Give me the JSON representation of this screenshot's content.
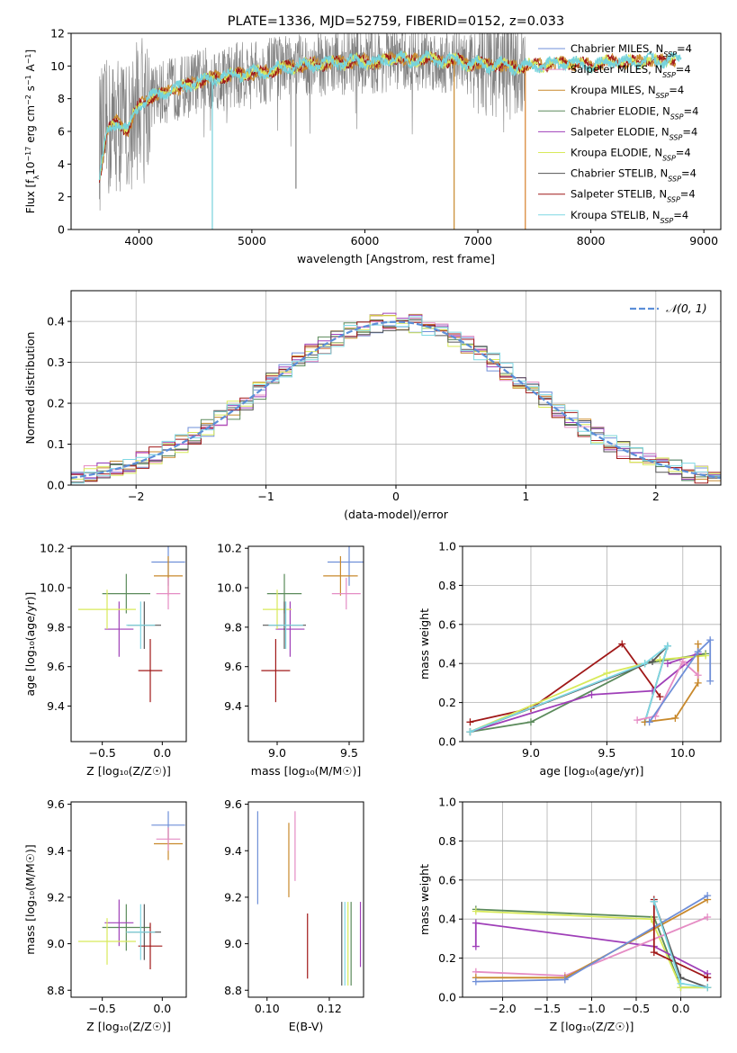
{
  "colors": {
    "chabrier_miles": "#6f8fd8",
    "salpeter_miles": "#e58cc4",
    "kroupa_miles": "#c8892c",
    "chabrier_elodie": "#5b8a5b",
    "salpeter_elodie": "#9f3fb8",
    "kroupa_elodie": "#d8ea5a",
    "chabrier_stelib": "#555555",
    "salpeter_stelib": "#a01818",
    "kroupa_stelib": "#7fd8e4",
    "normal_curve": "#5b8ed8",
    "grid": "#b0b0b0",
    "spectrum_gray": "#808080",
    "spectrum_cyan": "#76d3dc",
    "spectrum_orange": "#d87f2a"
  },
  "chart_data": [
    {
      "id": "spectrum",
      "type": "line",
      "title": "PLATE=1336, MJD=52759, FIBERID=0152, z=0.033",
      "xlabel": "wavelength [Angstrom, rest frame]",
      "ylabel_parts": [
        "Flux [f",
        "λ",
        "10",
        "−17",
        " erg cm",
        "−2",
        " s",
        "−1",
        " A",
        "−1",
        "]"
      ],
      "xlim": [
        3400,
        9150
      ],
      "ylim": [
        0,
        12
      ],
      "xticks": [
        4000,
        5000,
        6000,
        7000,
        8000,
        9000
      ],
      "yticks": [
        0,
        2,
        4,
        6,
        8,
        10,
        12
      ],
      "legend_placement": "top-right",
      "legend": [
        {
          "label": "Chabrier MILES, N",
          "sub": "SSP",
          "suffix": "=4",
          "color_key": "chabrier_miles"
        },
        {
          "label": "Salpeter MILES, N",
          "sub": "SSP",
          "suffix": "=4",
          "color_key": "salpeter_miles"
        },
        {
          "label": "Kroupa MILES, N",
          "sub": "SSP",
          "suffix": "=4",
          "color_key": "kroupa_miles"
        },
        {
          "label": "Chabrier ELODIE, N",
          "sub": "SSP",
          "suffix": "=4",
          "color_key": "chabrier_elodie"
        },
        {
          "label": "Salpeter ELODIE, N",
          "sub": "SSP",
          "suffix": "=4",
          "color_key": "salpeter_elodie"
        },
        {
          "label": "Kroupa ELODIE, N",
          "sub": "SSP",
          "suffix": "=4",
          "color_key": "kroupa_elodie"
        },
        {
          "label": "Chabrier STELIB, N",
          "sub": "SSP",
          "suffix": "=4",
          "color_key": "chabrier_stelib"
        },
        {
          "label": "Salpeter STELIB, N",
          "sub": "SSP",
          "suffix": "=4",
          "color_key": "salpeter_stelib"
        },
        {
          "label": "Kroupa STELIB, N",
          "sub": "SSP",
          "suffix": "=4",
          "color_key": "kroupa_stelib"
        }
      ],
      "model_continuum": {
        "x": [
          3650,
          3700,
          3750,
          3800,
          3850,
          3900,
          3950,
          4000,
          4100,
          4200,
          4300,
          4400,
          4500,
          4600,
          4700,
          4800,
          4900,
          5000,
          5100,
          5200,
          5300,
          5400,
          5500,
          5600,
          5700,
          5800,
          5900,
          6000,
          6100,
          6200,
          6300,
          6400,
          6500,
          6600,
          6700,
          6800,
          6900,
          7000,
          7100,
          7200,
          7300,
          7400,
          7600,
          7800,
          8000,
          8200,
          8400,
          8500,
          8600,
          8700,
          8800
        ],
        "y": [
          5.4,
          5.9,
          6.2,
          6.6,
          6.4,
          6.0,
          6.9,
          7.6,
          8.1,
          8.3,
          8.6,
          8.7,
          9.0,
          9.2,
          9.3,
          9.4,
          9.5,
          9.6,
          9.6,
          9.8,
          9.9,
          10.0,
          10.1,
          10.1,
          10.2,
          10.2,
          10.3,
          10.3,
          10.2,
          10.4,
          10.6,
          10.2,
          10.5,
          10.4,
          10.3,
          10.4,
          10.1,
          10.2,
          10.0,
          10.1,
          9.9,
          10.0,
          10.1,
          10.2,
          10.0,
          10.3,
          10.2,
          10.4,
          10.2,
          10.5,
          10.3
        ]
      },
      "data_range": [
        3650,
        7420
      ],
      "noise_amplitude": 2.0,
      "deep_dips": [
        {
          "x": 4650,
          "y": 0.0,
          "color_key": "spectrum_cyan"
        },
        {
          "x": 5390,
          "y": 2.5,
          "color_key": "spectrum_gray"
        },
        {
          "x": 6790,
          "y": 0.0,
          "color_key": "kroupa_miles"
        },
        {
          "x": 7420,
          "y": 0.0,
          "color_key": "spectrum_orange"
        }
      ]
    },
    {
      "id": "residuals",
      "type": "histogram",
      "xlabel": "(data-model)/error",
      "ylabel": "Normed distribution",
      "xlim": [
        -2.5,
        2.5
      ],
      "ylim": [
        0,
        0.475
      ],
      "xticks": [
        -2,
        -1,
        0,
        1,
        2
      ],
      "xtick_labels": [
        "−2",
        "−1",
        "0",
        "1",
        "2"
      ],
      "yticks": [
        0.0,
        0.1,
        0.2,
        0.3,
        0.4
      ],
      "ytick_labels": [
        "0.0",
        "0.1",
        "0.2",
        "0.3",
        "0.4"
      ],
      "legend_placement": "top-right",
      "normal_label": "𝒩(0, 1)",
      "bin_width": 0.1,
      "bin_start": -2.5,
      "n_bins": 50,
      "amplitude_jitter": 0.045
    },
    {
      "id": "age_vs_Z",
      "type": "errorbar",
      "xlabel": "Z [log₁₀(Z/Z☉)]",
      "ylabel": "age  [log₁₀(age/yr)]",
      "xlim": [
        -0.76,
        0.2
      ],
      "ylim": [
        9.22,
        10.21
      ],
      "xticks": [
        -0.5,
        0.0
      ],
      "xtick_labels": [
        "−0.5",
        "0.0"
      ],
      "yticks": [
        9.4,
        9.6,
        9.8,
        10.0,
        10.2
      ],
      "ytick_labels": [
        "9.4",
        "9.6",
        "9.8",
        "10.0",
        "10.2"
      ],
      "points": [
        {
          "color_key": "chabrier_miles",
          "x": 0.05,
          "xerr": 0.14,
          "y": 10.13,
          "yerr": 0.12
        },
        {
          "color_key": "kroupa_miles",
          "x": 0.05,
          "xerr": 0.12,
          "y": 10.06,
          "yerr": 0.1
        },
        {
          "color_key": "salpeter_miles",
          "x": 0.05,
          "xerr": 0.1,
          "y": 9.97,
          "yerr": 0.08
        },
        {
          "color_key": "chabrier_elodie",
          "x": -0.3,
          "xerr": 0.2,
          "y": 9.97,
          "yerr": 0.1
        },
        {
          "color_key": "salpeter_elodie",
          "x": -0.36,
          "xerr": 0.12,
          "y": 9.79,
          "yerr": 0.14
        },
        {
          "color_key": "kroupa_elodie",
          "x": -0.46,
          "xerr": 0.24,
          "y": 9.89,
          "yerr": 0.1
        },
        {
          "color_key": "chabrier_stelib",
          "x": -0.15,
          "xerr": 0.14,
          "y": 9.81,
          "yerr": 0.12
        },
        {
          "color_key": "salpeter_stelib",
          "x": -0.1,
          "xerr": 0.1,
          "y": 9.58,
          "yerr": 0.16
        },
        {
          "color_key": "kroupa_stelib",
          "x": -0.18,
          "xerr": 0.12,
          "y": 9.81,
          "yerr": 0.12
        }
      ]
    },
    {
      "id": "age_vs_mass",
      "type": "errorbar",
      "xlabel": "mass [log₁₀(M/M☉)]",
      "ylabel": "",
      "xlim": [
        8.8,
        9.6
      ],
      "ylim": [
        9.22,
        10.21
      ],
      "xticks": [
        9.0,
        9.5
      ],
      "xtick_labels": [
        "9.0",
        "9.5"
      ],
      "yticks": [
        9.4,
        9.6,
        9.8,
        10.0,
        10.2
      ],
      "ytick_labels": [
        "9.4",
        "9.6",
        "9.8",
        "10.0",
        "10.2"
      ],
      "points": [
        {
          "color_key": "chabrier_miles",
          "x": 9.5,
          "xerr": 0.15,
          "y": 10.13,
          "yerr": 0.12
        },
        {
          "color_key": "kroupa_miles",
          "x": 9.44,
          "xerr": 0.12,
          "y": 10.06,
          "yerr": 0.1
        },
        {
          "color_key": "salpeter_miles",
          "x": 9.48,
          "xerr": 0.1,
          "y": 9.97,
          "yerr": 0.08
        },
        {
          "color_key": "chabrier_elodie",
          "x": 9.05,
          "xerr": 0.12,
          "y": 9.97,
          "yerr": 0.1
        },
        {
          "color_key": "salpeter_elodie",
          "x": 9.09,
          "xerr": 0.1,
          "y": 9.79,
          "yerr": 0.14
        },
        {
          "color_key": "kroupa_elodie",
          "x": 9.0,
          "xerr": 0.1,
          "y": 9.89,
          "yerr": 0.1
        },
        {
          "color_key": "chabrier_stelib",
          "x": 9.05,
          "xerr": 0.15,
          "y": 9.81,
          "yerr": 0.12
        },
        {
          "color_key": "salpeter_stelib",
          "x": 8.99,
          "xerr": 0.1,
          "y": 9.58,
          "yerr": 0.16
        },
        {
          "color_key": "kroupa_stelib",
          "x": 9.06,
          "xerr": 0.12,
          "y": 9.81,
          "yerr": 0.12
        }
      ]
    },
    {
      "id": "weight_vs_age",
      "type": "line",
      "xlabel": "age  [log₁₀(age/yr)]",
      "ylabel": "mass weight",
      "xlim": [
        8.55,
        10.25
      ],
      "ylim": [
        0,
        1
      ],
      "xticks": [
        9.0,
        9.5,
        10.0
      ],
      "xtick_labels": [
        "9.0",
        "9.5",
        "10.0"
      ],
      "yticks": [
        0.0,
        0.2,
        0.4,
        0.6,
        0.8,
        1.0
      ],
      "ytick_labels": [
        "0.0",
        "0.2",
        "0.4",
        "0.6",
        "0.8",
        "1.0"
      ],
      "grid": true,
      "series": [
        {
          "color_key": "salpeter_stelib",
          "x": [
            8.6,
            9.0,
            9.6,
            9.85
          ],
          "y": [
            0.1,
            0.17,
            0.5,
            0.23
          ]
        },
        {
          "color_key": "chabrier_elodie",
          "x": [
            8.6,
            9.0,
            9.75,
            10.15
          ],
          "y": [
            0.05,
            0.1,
            0.4,
            0.45
          ]
        },
        {
          "color_key": "salpeter_elodie",
          "x": [
            8.6,
            9.4,
            9.8,
            10.1,
            9.9
          ],
          "y": [
            0.05,
            0.24,
            0.26,
            0.45,
            0.4
          ]
        },
        {
          "color_key": "kroupa_elodie",
          "x": [
            8.6,
            9.5,
            9.85,
            10.15
          ],
          "y": [
            0.05,
            0.35,
            0.42,
            0.44
          ]
        },
        {
          "color_key": "chabrier_stelib",
          "x": [
            8.6,
            9.8,
            9.9,
            9.75
          ],
          "y": [
            0.05,
            0.41,
            0.49,
            0.1
          ]
        },
        {
          "color_key": "kroupa_stelib",
          "x": [
            8.6,
            9.75,
            9.9,
            9.75
          ],
          "y": [
            0.05,
            0.4,
            0.49,
            0.1
          ]
        },
        {
          "color_key": "kroupa_miles",
          "x": [
            9.75,
            9.95,
            10.1,
            10.1
          ],
          "y": [
            0.1,
            0.12,
            0.3,
            0.5
          ]
        },
        {
          "color_key": "salpeter_miles",
          "x": [
            9.7,
            9.82,
            10.0,
            10.1
          ],
          "y": [
            0.11,
            0.13,
            0.41,
            0.34
          ]
        },
        {
          "color_key": "chabrier_miles",
          "x": [
            9.78,
            10.1,
            10.18,
            10.18
          ],
          "y": [
            0.1,
            0.46,
            0.52,
            0.31
          ]
        }
      ]
    },
    {
      "id": "mass_vs_Z",
      "type": "errorbar",
      "xlabel": "Z [log₁₀(Z/Z☉)]",
      "ylabel": "mass [log₁₀(M/M☉)]",
      "xlim": [
        -0.76,
        0.2
      ],
      "ylim": [
        8.77,
        9.61
      ],
      "xticks": [
        -0.5,
        0.0
      ],
      "xtick_labels": [
        "−0.5",
        "0.0"
      ],
      "yticks": [
        8.8,
        9.0,
        9.2,
        9.4,
        9.6
      ],
      "ytick_labels": [
        "8.8",
        "9.0",
        "9.2",
        "9.4",
        "9.6"
      ],
      "points": [
        {
          "color_key": "chabrier_miles",
          "x": 0.05,
          "xerr": 0.14,
          "y": 9.51,
          "yerr": 0.06
        },
        {
          "color_key": "kroupa_miles",
          "x": 0.05,
          "xerr": 0.12,
          "y": 9.43,
          "yerr": 0.07
        },
        {
          "color_key": "salpeter_miles",
          "x": 0.05,
          "xerr": 0.1,
          "y": 9.45,
          "yerr": 0.05
        },
        {
          "color_key": "chabrier_elodie",
          "x": -0.3,
          "xerr": 0.2,
          "y": 9.07,
          "yerr": 0.1
        },
        {
          "color_key": "salpeter_elodie",
          "x": -0.36,
          "xerr": 0.12,
          "y": 9.09,
          "yerr": 0.1
        },
        {
          "color_key": "kroupa_elodie",
          "x": -0.46,
          "xerr": 0.24,
          "y": 9.01,
          "yerr": 0.1
        },
        {
          "color_key": "chabrier_stelib",
          "x": -0.15,
          "xerr": 0.14,
          "y": 9.05,
          "yerr": 0.12
        },
        {
          "color_key": "salpeter_stelib",
          "x": -0.1,
          "xerr": 0.1,
          "y": 8.99,
          "yerr": 0.1
        },
        {
          "color_key": "kroupa_stelib",
          "x": -0.18,
          "xerr": 0.12,
          "y": 9.05,
          "yerr": 0.12
        }
      ]
    },
    {
      "id": "mass_vs_ebv",
      "type": "errorbar",
      "xlabel": "E(B-V)",
      "ylabel": "",
      "xlim": [
        0.094,
        0.131
      ],
      "ylim": [
        8.77,
        9.61
      ],
      "xticks": [
        0.1,
        0.12
      ],
      "xtick_labels": [
        "0.10",
        "0.12"
      ],
      "yticks": [
        8.8,
        9.0,
        9.2,
        9.4,
        9.6
      ],
      "ytick_labels": [
        "8.8",
        "9.0",
        "9.2",
        "9.4",
        "9.6"
      ],
      "points": [
        {
          "color_key": "chabrier_miles",
          "x": 0.097,
          "xerr": 0,
          "y": 9.37,
          "yerr": 0.2
        },
        {
          "color_key": "kroupa_miles",
          "x": 0.107,
          "xerr": 0,
          "y": 9.36,
          "yerr": 0.16
        },
        {
          "color_key": "salpeter_miles",
          "x": 0.109,
          "xerr": 0,
          "y": 9.42,
          "yerr": 0.15
        },
        {
          "color_key": "salpeter_stelib",
          "x": 0.113,
          "xerr": 0,
          "y": 8.99,
          "yerr": 0.14
        },
        {
          "color_key": "chabrier_stelib",
          "x": 0.124,
          "xerr": 0,
          "y": 9.0,
          "yerr": 0.18
        },
        {
          "color_key": "kroupa_stelib",
          "x": 0.125,
          "xerr": 0,
          "y": 9.0,
          "yerr": 0.18
        },
        {
          "color_key": "kroupa_elodie",
          "x": 0.126,
          "xerr": 0,
          "y": 9.0,
          "yerr": 0.18
        },
        {
          "color_key": "chabrier_elodie",
          "x": 0.127,
          "xerr": 0,
          "y": 9.0,
          "yerr": 0.18
        },
        {
          "color_key": "salpeter_elodie",
          "x": 0.13,
          "xerr": 0,
          "y": 9.04,
          "yerr": 0.14
        }
      ]
    },
    {
      "id": "weight_vs_Z",
      "type": "line",
      "xlabel": "Z [log₁₀(Z/Z☉)]",
      "ylabel": "mass weight",
      "xlim": [
        -2.45,
        0.45
      ],
      "ylim": [
        0,
        1
      ],
      "xticks": [
        -2.0,
        -1.5,
        -1.0,
        -0.5,
        0.0
      ],
      "xtick_labels": [
        "−2.0",
        "−1.5",
        "−1.0",
        "−0.5",
        "0.0"
      ],
      "yticks": [
        0.0,
        0.2,
        0.4,
        0.6,
        0.8,
        1.0
      ],
      "ytick_labels": [
        "0.0",
        "0.2",
        "0.4",
        "0.6",
        "0.8",
        "1.0"
      ],
      "grid": true,
      "series": [
        {
          "color_key": "chabrier_elodie",
          "x": [
            -2.3,
            -0.3,
            0.0,
            0.3
          ],
          "y": [
            0.45,
            0.41,
            0.05,
            0.05
          ]
        },
        {
          "color_key": "kroupa_elodie",
          "x": [
            -2.3,
            -0.33,
            0.0,
            0.3
          ],
          "y": [
            0.44,
            0.4,
            0.05,
            0.05
          ]
        },
        {
          "color_key": "salpeter_elodie",
          "x": [
            -2.3,
            -2.3,
            -0.3,
            0.3,
            0.3
          ],
          "y": [
            0.26,
            0.38,
            0.26,
            0.12,
            0.1
          ]
        },
        {
          "color_key": "salpeter_miles",
          "x": [
            -2.3,
            -1.3,
            0.3
          ],
          "y": [
            0.13,
            0.11,
            0.41
          ]
        },
        {
          "color_key": "kroupa_miles",
          "x": [
            -2.3,
            -1.3,
            0.3
          ],
          "y": [
            0.1,
            0.1,
            0.5
          ]
        },
        {
          "color_key": "chabrier_miles",
          "x": [
            -2.3,
            -1.3,
            0.3
          ],
          "y": [
            0.08,
            0.09,
            0.52
          ]
        },
        {
          "color_key": "salpeter_stelib",
          "x": [
            -0.3,
            -0.3,
            0.3
          ],
          "y": [
            0.5,
            0.23,
            0.1
          ]
        },
        {
          "color_key": "chabrier_stelib",
          "x": [
            -0.3,
            0.0,
            0.3
          ],
          "y": [
            0.49,
            0.1,
            0.05
          ]
        },
        {
          "color_key": "kroupa_stelib",
          "x": [
            -0.3,
            0.0,
            0.3
          ],
          "y": [
            0.49,
            0.07,
            0.05
          ]
        }
      ]
    }
  ]
}
